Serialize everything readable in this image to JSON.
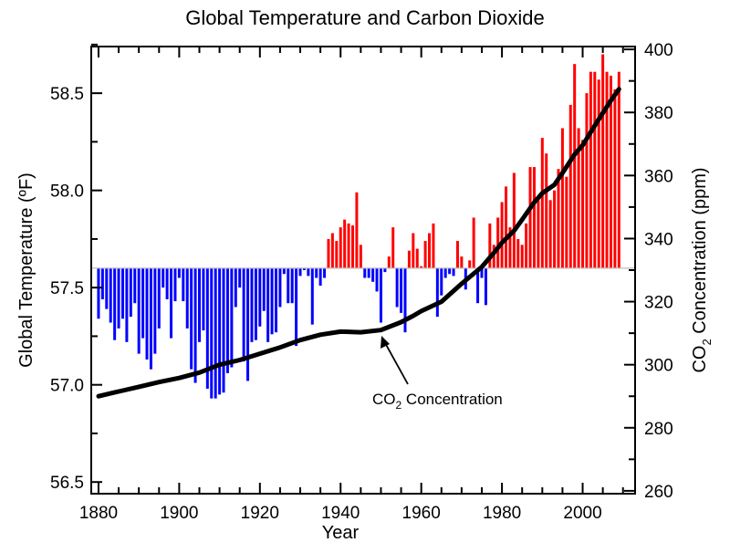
{
  "chart_data": {
    "type": "bar+line",
    "title": "Global Temperature and Carbon Dioxide",
    "xlabel": "Year",
    "ylabel_left": "Global Temperature (ºF)",
    "ylabel_right": {
      "main": "CO",
      "sub": "2",
      "rest": " Concentration (ppm)"
    },
    "xlim": [
      1878.2,
      2013.0
    ],
    "ylim_left": [
      56.44,
      58.74
    ],
    "ylim_right": [
      259.1,
      400.9
    ],
    "x_ticks": [
      "1880",
      "1900",
      "1920",
      "1940",
      "1960",
      "1980",
      "2000"
    ],
    "y_ticks_left": [
      "56.5",
      "57.0",
      "57.5",
      "58.0",
      "58.5"
    ],
    "y_ticks_right": [
      "260",
      "280",
      "300",
      "320",
      "340",
      "360",
      "380",
      "400"
    ],
    "grid": false,
    "temperature": {
      "baseline": 57.6,
      "color_above": "#ff0000",
      "color_below": "#0000ff",
      "years": [
        1880,
        1881,
        1882,
        1883,
        1884,
        1885,
        1886,
        1887,
        1888,
        1889,
        1890,
        1891,
        1892,
        1893,
        1894,
        1895,
        1896,
        1897,
        1898,
        1899,
        1900,
        1901,
        1902,
        1903,
        1904,
        1905,
        1906,
        1907,
        1908,
        1909,
        1910,
        1911,
        1912,
        1913,
        1914,
        1915,
        1916,
        1917,
        1918,
        1919,
        1920,
        1921,
        1922,
        1923,
        1924,
        1925,
        1926,
        1927,
        1928,
        1929,
        1930,
        1931,
        1932,
        1933,
        1934,
        1935,
        1936,
        1937,
        1938,
        1939,
        1940,
        1941,
        1942,
        1943,
        1944,
        1945,
        1946,
        1947,
        1948,
        1949,
        1950,
        1951,
        1952,
        1953,
        1954,
        1955,
        1956,
        1957,
        1958,
        1959,
        1960,
        1961,
        1962,
        1963,
        1964,
        1965,
        1966,
        1967,
        1968,
        1969,
        1970,
        1971,
        1972,
        1973,
        1974,
        1975,
        1976,
        1977,
        1978,
        1979,
        1980,
        1981,
        1982,
        1983,
        1984,
        1985,
        1986,
        1987,
        1988,
        1989,
        1990,
        1991,
        1992,
        1993,
        1994,
        1995,
        1996,
        1997,
        1998,
        1999,
        2000,
        2001,
        2002,
        2003,
        2004,
        2005,
        2006,
        2007,
        2008,
        2009
      ],
      "values": [
        57.34,
        57.44,
        57.39,
        57.32,
        57.23,
        57.29,
        57.34,
        57.22,
        57.35,
        57.42,
        57.16,
        57.24,
        57.13,
        57.08,
        57.16,
        57.29,
        57.5,
        57.44,
        57.24,
        57.43,
        57.55,
        57.43,
        57.29,
        57.08,
        57.01,
        57.22,
        57.28,
        56.98,
        56.93,
        56.93,
        56.95,
        56.96,
        57.06,
        57.09,
        57.4,
        57.5,
        57.12,
        57.02,
        57.22,
        57.23,
        57.3,
        57.38,
        57.22,
        57.26,
        57.27,
        57.4,
        57.57,
        57.42,
        57.42,
        57.2,
        57.56,
        57.59,
        57.56,
        57.31,
        57.55,
        57.51,
        57.55,
        57.75,
        57.78,
        57.74,
        57.81,
        57.85,
        57.83,
        57.82,
        57.99,
        57.72,
        57.55,
        57.55,
        57.53,
        57.48,
        57.32,
        57.58,
        57.66,
        57.81,
        57.4,
        57.37,
        57.27,
        57.69,
        57.78,
        57.7,
        57.61,
        57.74,
        57.78,
        57.83,
        57.35,
        57.46,
        57.55,
        57.57,
        57.56,
        57.74,
        57.66,
        57.49,
        57.64,
        57.86,
        57.42,
        57.55,
        57.41,
        57.83,
        57.72,
        57.86,
        57.94,
        58.02,
        57.81,
        58.09,
        57.75,
        57.72,
        57.83,
        58.12,
        58.12,
        57.95,
        58.27,
        58.19,
        57.95,
        58.0,
        58.11,
        58.32,
        58.07,
        58.44,
        58.65,
        58.32,
        58.26,
        58.5,
        58.61,
        58.61,
        58.57,
        58.7,
        58.61,
        58.59,
        58.52,
        58.61
      ]
    },
    "co2": {
      "color": "#000000",
      "points": [
        [
          1880,
          290
        ],
        [
          1885,
          291.5
        ],
        [
          1890,
          293
        ],
        [
          1895,
          294.5
        ],
        [
          1900,
          295.8
        ],
        [
          1905,
          297.5
        ],
        [
          1910,
          300
        ],
        [
          1915,
          301.5
        ],
        [
          1920,
          303.5
        ],
        [
          1925,
          305.5
        ],
        [
          1930,
          307.8
        ],
        [
          1935,
          309.5
        ],
        [
          1940,
          310.5
        ],
        [
          1945,
          310.3
        ],
        [
          1950,
          311
        ],
        [
          1955,
          313.5
        ],
        [
          1958,
          315.5
        ],
        [
          1960,
          317
        ],
        [
          1965,
          320
        ],
        [
          1970,
          325.7
        ],
        [
          1975,
          331
        ],
        [
          1978,
          335.5
        ],
        [
          1980,
          338.7
        ],
        [
          1983,
          342.5
        ],
        [
          1985,
          346
        ],
        [
          1988,
          351.5
        ],
        [
          1990,
          354.4
        ],
        [
          1993,
          357.1
        ],
        [
          1995,
          360.8
        ],
        [
          1998,
          366.7
        ],
        [
          2000,
          369.6
        ],
        [
          2003,
          375.8
        ],
        [
          2005,
          379.8
        ],
        [
          2007,
          383.8
        ],
        [
          2009,
          387.4
        ]
      ]
    },
    "annotation": {
      "main": "CO",
      "sub": "2",
      "rest": " Concentration",
      "points_to_year": 1949
    }
  }
}
